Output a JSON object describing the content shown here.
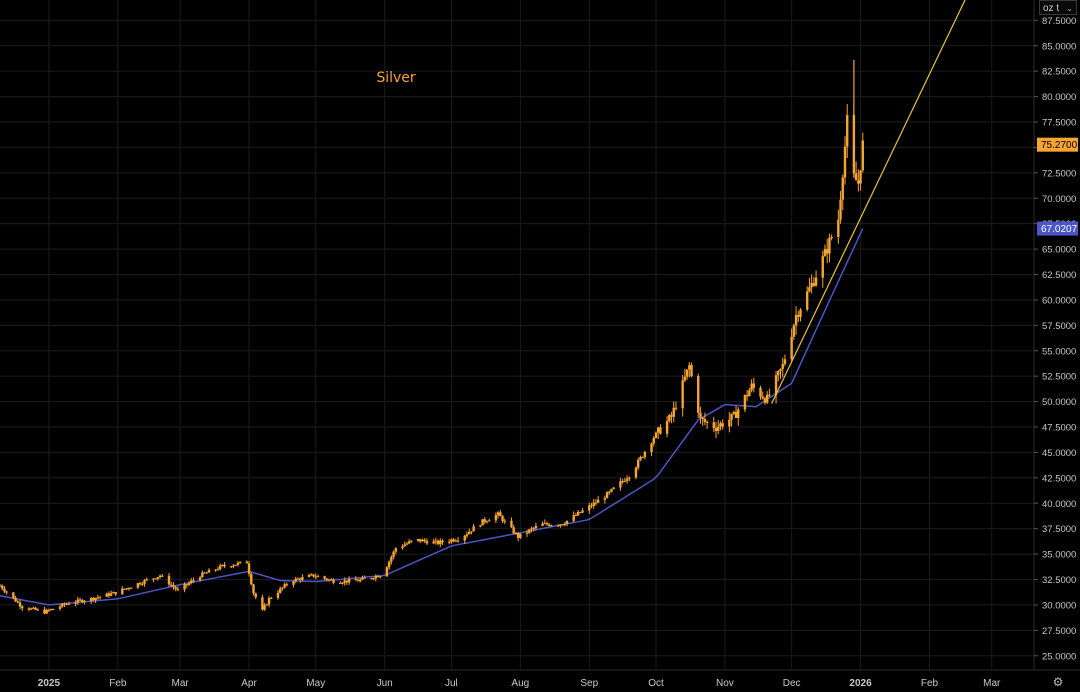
{
  "unit_select": {
    "label": "oz t"
  },
  "settings": {
    "icon": "gear-icon"
  },
  "colors": {
    "background": "#000000",
    "price": "#f7a531",
    "moving_average": "#4a56c8",
    "trendline": "#e8c33d",
    "grid": "#1c1c1c"
  },
  "chart_data": {
    "type": "line",
    "title": "Silver",
    "grid": true,
    "y_axis": {
      "position": "right",
      "ylim": [
        23.6,
        89.5
      ],
      "tick_labels": [
        "25.0000",
        "27.5000",
        "30.0000",
        "32.5000",
        "35.0000",
        "37.5000",
        "40.0000",
        "42.5000",
        "45.0000",
        "47.5000",
        "50.0000",
        "52.5000",
        "55.0000",
        "57.5000",
        "60.0000",
        "62.5000",
        "65.0000",
        "67.5000",
        "70.0000",
        "72.5000",
        "75.0000",
        "77.5000",
        "80.0000",
        "82.5000",
        "85.0000",
        "87.5000"
      ]
    },
    "x_axis": {
      "tick_labels": [
        "2025",
        "Feb",
        "Mar",
        "Apr",
        "May",
        "Jun",
        "Jul",
        "Aug",
        "Sep",
        "Oct",
        "Nov",
        "Dec",
        "2026",
        "Feb",
        "Mar"
      ],
      "range": [
        "2024-12-10",
        "2026-03-20"
      ]
    },
    "last_price": {
      "value": 75.27,
      "label": "75.2700"
    },
    "ma_last": {
      "value": 67.0207,
      "label": "67.0207"
    },
    "price_series": {
      "name": "Silver",
      "points": [
        [
          "2024-12-10",
          31.9
        ],
        [
          "2024-12-20",
          29.8
        ],
        [
          "2024-12-30",
          29.3
        ],
        [
          "2025-01-10",
          30.2
        ],
        [
          "2025-01-20",
          30.6
        ],
        [
          "2025-01-31",
          31.2
        ],
        [
          "2025-02-10",
          32.1
        ],
        [
          "2025-02-20",
          32.9
        ],
        [
          "2025-02-28",
          31.4
        ],
        [
          "2025-03-10",
          32.9
        ],
        [
          "2025-03-20",
          33.8
        ],
        [
          "2025-03-31",
          34.2
        ],
        [
          "2025-04-03",
          31.2
        ],
        [
          "2025-04-07",
          29.4
        ],
        [
          "2025-04-10",
          30.6
        ],
        [
          "2025-04-20",
          32.4
        ],
        [
          "2025-04-30",
          32.9
        ],
        [
          "2025-05-10",
          32.3
        ],
        [
          "2025-05-20",
          32.4
        ],
        [
          "2025-05-31",
          33.0
        ],
        [
          "2025-06-06",
          35.6
        ],
        [
          "2025-06-15",
          36.4
        ],
        [
          "2025-06-25",
          36.1
        ],
        [
          "2025-07-05",
          36.6
        ],
        [
          "2025-07-15",
          38.2
        ],
        [
          "2025-07-22",
          38.9
        ],
        [
          "2025-07-31",
          36.7
        ],
        [
          "2025-08-10",
          37.9
        ],
        [
          "2025-08-20",
          38.0
        ],
        [
          "2025-08-31",
          39.5
        ],
        [
          "2025-09-10",
          41.0
        ],
        [
          "2025-09-20",
          43.0
        ],
        [
          "2025-09-30",
          46.5
        ],
        [
          "2025-10-08",
          48.5
        ],
        [
          "2025-10-16",
          53.5
        ],
        [
          "2025-10-21",
          48.2
        ],
        [
          "2025-10-28",
          47.5
        ],
        [
          "2025-11-05",
          48.5
        ],
        [
          "2025-11-13",
          51.5
        ],
        [
          "2025-11-20",
          50.2
        ],
        [
          "2025-11-27",
          53.5
        ],
        [
          "2025-12-03",
          58.5
        ],
        [
          "2025-12-10",
          61.5
        ],
        [
          "2025-12-16",
          64.5
        ],
        [
          "2025-12-22",
          68.0
        ],
        [
          "2025-12-26",
          77.5
        ],
        [
          "2025-12-29",
          72.0
        ],
        [
          "2025-12-31",
          71.5
        ],
        [
          "2026-01-02",
          75.27
        ]
      ]
    },
    "moving_average": {
      "points": [
        [
          "2024-12-10",
          30.9
        ],
        [
          "2025-01-01",
          30.0
        ],
        [
          "2025-02-01",
          30.6
        ],
        [
          "2025-03-01",
          32.0
        ],
        [
          "2025-04-01",
          33.3
        ],
        [
          "2025-04-15",
          32.4
        ],
        [
          "2025-05-01",
          32.3
        ],
        [
          "2025-06-01",
          32.9
        ],
        [
          "2025-07-01",
          35.8
        ],
        [
          "2025-08-01",
          37.1
        ],
        [
          "2025-09-01",
          38.4
        ],
        [
          "2025-10-01",
          42.5
        ],
        [
          "2025-10-20",
          48.2
        ],
        [
          "2025-11-01",
          49.7
        ],
        [
          "2025-11-15",
          49.5
        ],
        [
          "2025-12-01",
          51.8
        ],
        [
          "2025-12-15",
          58.5
        ],
        [
          "2026-01-02",
          67.02
        ]
      ]
    },
    "trendline": {
      "points": [
        [
          "2025-11-22",
          49.8
        ],
        [
          "2026-03-01",
          95.0
        ]
      ]
    }
  }
}
